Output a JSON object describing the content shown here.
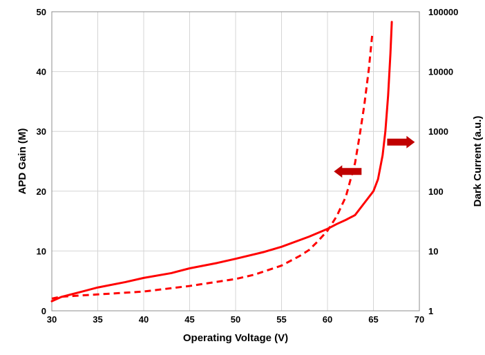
{
  "chart_data": {
    "type": "line",
    "xlabel": "Operating Voltage (V)",
    "ylabel": "APD Gain (M)",
    "y2label": "Dark Current (a.u.)",
    "xlim": [
      30,
      70
    ],
    "ylim": [
      0,
      50
    ],
    "y2lim": [
      1,
      100000
    ],
    "y2scale": "log",
    "x_ticks": [
      30,
      35,
      40,
      45,
      50,
      55,
      60,
      65,
      70
    ],
    "y_ticks": [
      0,
      10,
      20,
      30,
      40,
      50
    ],
    "y2_ticks": [
      1,
      10,
      100,
      1000,
      10000,
      100000
    ],
    "grid": true,
    "colors": {
      "series": "#ff0000",
      "arrow": "#c00000"
    },
    "series": [
      {
        "style": "solid",
        "axis": "left",
        "points": [
          [
            30,
            1.6
          ],
          [
            31,
            2.3
          ],
          [
            32,
            2.7
          ],
          [
            33,
            3.1
          ],
          [
            35,
            3.9
          ],
          [
            38,
            4.8
          ],
          [
            40,
            5.5
          ],
          [
            43,
            6.3
          ],
          [
            45,
            7.1
          ],
          [
            48,
            8.0
          ],
          [
            50,
            8.7
          ],
          [
            53,
            9.8
          ],
          [
            55,
            10.7
          ],
          [
            58,
            12.4
          ],
          [
            60,
            13.7
          ],
          [
            61,
            14.5
          ],
          [
            62,
            15.2
          ],
          [
            63,
            16.0
          ],
          [
            64,
            18.0
          ],
          [
            65,
            20.0
          ],
          [
            65.5,
            22.0
          ],
          [
            66,
            26.0
          ],
          [
            66.3,
            30.0
          ],
          [
            66.6,
            36.0
          ],
          [
            66.85,
            43.0
          ],
          [
            67,
            48.3
          ]
        ]
      },
      {
        "style": "dashed",
        "axis": "right",
        "points": [
          [
            30,
            1.6
          ],
          [
            31,
            1.72
          ],
          [
            35,
            1.88
          ],
          [
            40,
            2.1
          ],
          [
            45,
            2.6
          ],
          [
            50,
            3.4
          ],
          [
            52,
            4.0
          ],
          [
            55,
            5.7
          ],
          [
            57,
            8.3
          ],
          [
            58,
            10.4
          ],
          [
            59,
            14.8
          ],
          [
            60,
            21.8
          ],
          [
            61,
            38.0
          ],
          [
            62,
            81.0
          ],
          [
            63,
            295.0
          ],
          [
            63.5,
            850.0
          ],
          [
            64,
            2700.0
          ],
          [
            64.5,
            11000.0
          ],
          [
            64.9,
            46000.0
          ]
        ]
      }
    ],
    "annotations": [
      {
        "shape": "arrow",
        "direction": "left",
        "x": 62.2,
        "y": 23.3
      },
      {
        "shape": "arrow",
        "direction": "right",
        "x": 68.0,
        "y": 28.2
      }
    ]
  }
}
